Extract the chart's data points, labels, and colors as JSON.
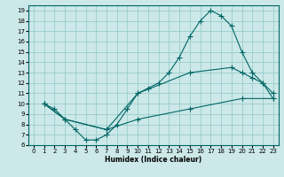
{
  "xlabel": "Humidex (Indice chaleur)",
  "bg_color": "#cce8e8",
  "grid_color": "#99cccc",
  "line_color": "#006666",
  "xlim": [
    -0.5,
    23.5
  ],
  "ylim": [
    6,
    19.5
  ],
  "xticks": [
    0,
    1,
    2,
    3,
    4,
    5,
    6,
    7,
    8,
    9,
    10,
    11,
    12,
    13,
    14,
    15,
    16,
    17,
    18,
    19,
    20,
    21,
    22,
    23
  ],
  "yticks": [
    6,
    7,
    8,
    9,
    10,
    11,
    12,
    13,
    14,
    15,
    16,
    17,
    18,
    19
  ],
  "line1_x": [
    1,
    2,
    3,
    4,
    5,
    6,
    7,
    8,
    9,
    10,
    11,
    12,
    13,
    14,
    15,
    16,
    17,
    18,
    19,
    20,
    21,
    22,
    23
  ],
  "line1_y": [
    10,
    9.5,
    8.5,
    7.5,
    6.5,
    6.5,
    7.0,
    8.0,
    9.5,
    11.0,
    11.5,
    12.0,
    13.0,
    14.5,
    16.5,
    18.0,
    19.0,
    18.5,
    17.5,
    15.0,
    13.0,
    12.0,
    10.5
  ],
  "line2_x": [
    1,
    3,
    7,
    10,
    15,
    19,
    20,
    21,
    22,
    23
  ],
  "line2_y": [
    10,
    8.5,
    7.5,
    11.0,
    13.0,
    13.5,
    13.0,
    12.5,
    12.0,
    11.0
  ],
  "line3_x": [
    1,
    3,
    7,
    10,
    15,
    20,
    23
  ],
  "line3_y": [
    10,
    8.5,
    7.5,
    8.5,
    9.5,
    10.5,
    10.5
  ]
}
